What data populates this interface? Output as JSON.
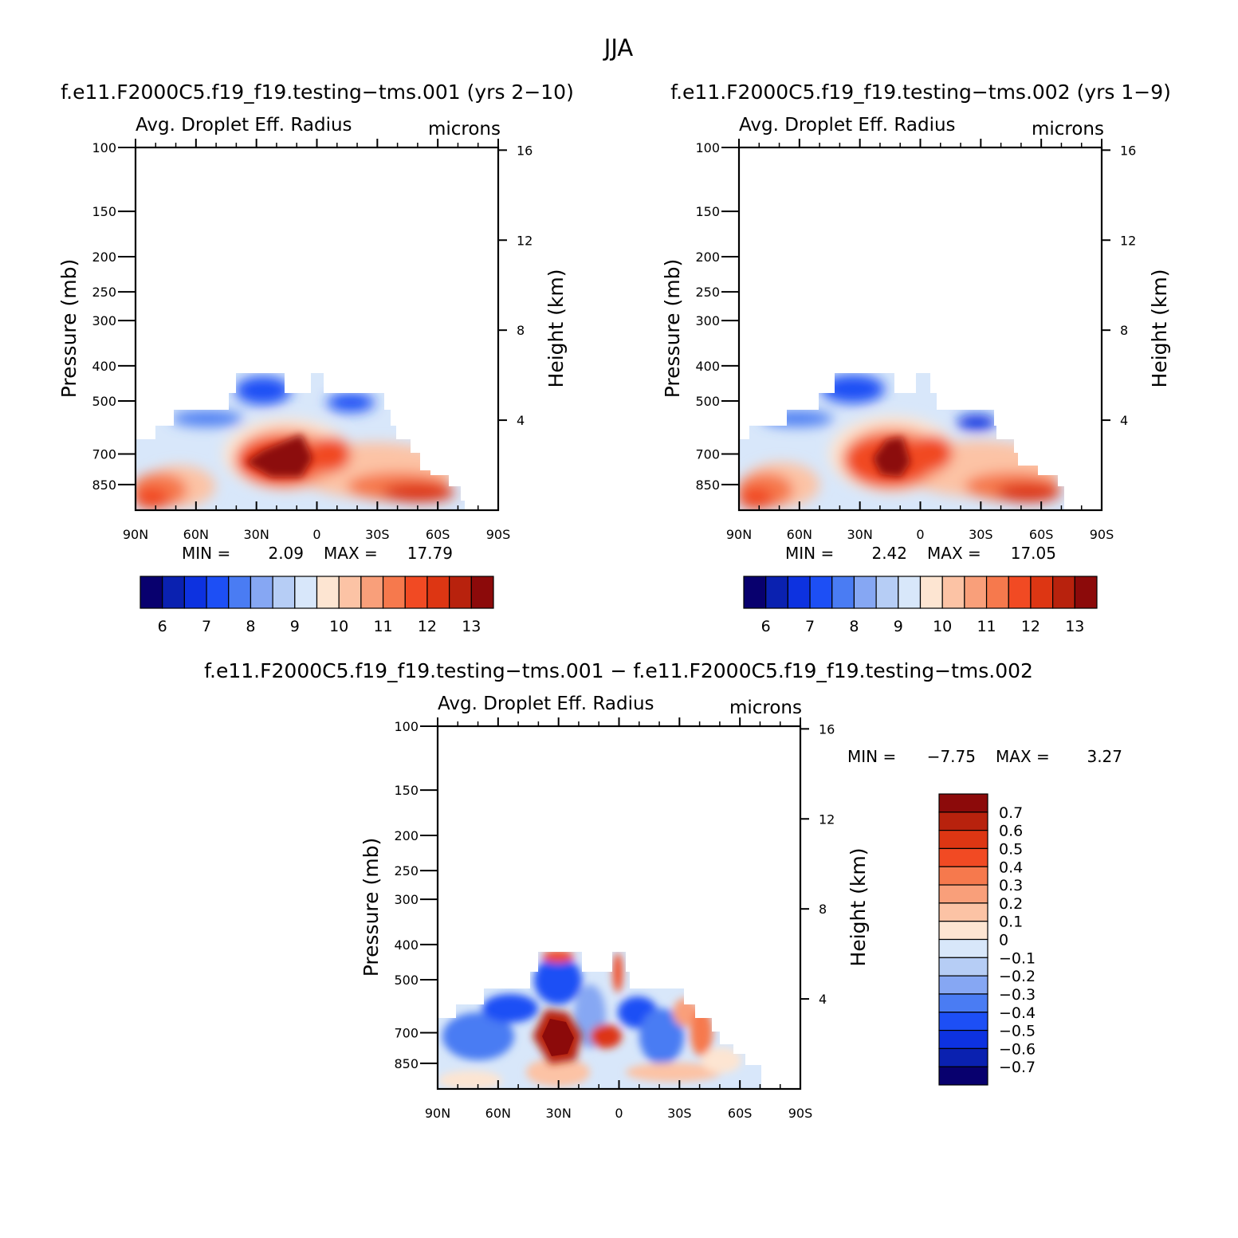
{
  "title": "JJA",
  "chart_data": [
    {
      "type": "heatmap",
      "case_title": "f.e11.F2000C5.f19_f19.testing−tms.001 (yrs 2−10)",
      "variable": "Avg. Droplet Eff. Radius",
      "units": "microns",
      "ylabel": "Pressure (mb)",
      "ylabel_right": "Height (km)",
      "x_ticks": [
        "90N",
        "60N",
        "30N",
        "0",
        "30S",
        "60S",
        "90S"
      ],
      "y_ticks": [
        "100",
        "150",
        "200",
        "250",
        "300",
        "400",
        "500",
        "700",
        "850"
      ],
      "y2_ticks": [
        "16",
        "12",
        "8",
        "4"
      ],
      "xlim": [
        90,
        -90
      ],
      "ylim": [
        1000,
        100
      ],
      "y_scale": "log",
      "min_label": "MIN =",
      "min_value": "2.09",
      "max_label": "MAX =",
      "max_value": "17.79",
      "colorbar": {
        "orientation": "horizontal",
        "labels": [
          "6",
          "7",
          "8",
          "9",
          "10",
          "11",
          "12",
          "13"
        ],
        "colors": [
          "#08006e",
          "#0a21b0",
          "#0d32e0",
          "#1d4ff5",
          "#4a7cf3",
          "#86a7f3",
          "#b6cdf5",
          "#d8e7fa",
          "#fde5d2",
          "#fcc3a5",
          "#f99f7a",
          "#f6794d",
          "#f14a23",
          "#dd3613",
          "#b8220d",
          "#8c0a0a"
        ]
      },
      "bottom_rows": [
        9,
        1
      ]
    },
    {
      "type": "heatmap",
      "case_title": "f.e11.F2000C5.f19_f19.testing−tms.002 (yrs 1−9)",
      "variable": "Avg. Droplet Eff. Radius",
      "units": "microns",
      "ylabel": "Pressure (mb)",
      "ylabel_right": "Height (km)",
      "x_ticks": [
        "90N",
        "60N",
        "30N",
        "0",
        "30S",
        "60S",
        "90S"
      ],
      "y_ticks": [
        "100",
        "150",
        "200",
        "250",
        "300",
        "400",
        "500",
        "700",
        "850"
      ],
      "y2_ticks": [
        "16",
        "12",
        "8",
        "4"
      ],
      "xlim": [
        90,
        -90
      ],
      "ylim": [
        1000,
        100
      ],
      "y_scale": "log",
      "min_label": "MIN =",
      "min_value": "2.42",
      "max_label": "MAX =",
      "max_value": "17.05",
      "colorbar": {
        "orientation": "horizontal",
        "labels": [
          "6",
          "7",
          "8",
          "9",
          "10",
          "11",
          "12",
          "13"
        ],
        "colors": [
          "#08006e",
          "#0a21b0",
          "#0d32e0",
          "#1d4ff5",
          "#4a7cf3",
          "#86a7f3",
          "#b6cdf5",
          "#d8e7fa",
          "#fde5d2",
          "#fcc3a5",
          "#f99f7a",
          "#f6794d",
          "#f14a23",
          "#dd3613",
          "#b8220d",
          "#8c0a0a"
        ]
      },
      "bottom_rows": [
        9,
        1
      ]
    },
    {
      "type": "heatmap",
      "case_title": "f.e11.F2000C5.f19_f19.testing−tms.001 − f.e11.F2000C5.f19_f19.testing−tms.002",
      "variable": "Avg. Droplet Eff. Radius",
      "units": "microns",
      "ylabel": "Pressure (mb)",
      "ylabel_right": "Height (km)",
      "x_ticks": [
        "90N",
        "60N",
        "30N",
        "0",
        "30S",
        "60S",
        "90S"
      ],
      "y_ticks": [
        "100",
        "150",
        "200",
        "250",
        "300",
        "400",
        "500",
        "700",
        "850"
      ],
      "y2_ticks": [
        "16",
        "12",
        "8",
        "4"
      ],
      "xlim": [
        90,
        -90
      ],
      "ylim": [
        1000,
        100
      ],
      "y_scale": "log",
      "min_label": "MIN =",
      "min_value": "−7.75",
      "max_label": "MAX =",
      "max_value": "3.27",
      "colorbar": {
        "orientation": "vertical",
        "labels": [
          "0.7",
          "0.6",
          "0.5",
          "0.4",
          "0.3",
          "0.2",
          "0.1",
          "0",
          "−0.1",
          "−0.2",
          "−0.3",
          "−0.4",
          "−0.5",
          "−0.6",
          "−0.7"
        ],
        "colors": [
          "#8c0a0a",
          "#b8220d",
          "#dd3613",
          "#f14a23",
          "#f6794d",
          "#f99f7a",
          "#fcc3a5",
          "#fde5d2",
          "#d8e7fa",
          "#b6cdf5",
          "#86a7f3",
          "#4a7cf3",
          "#1d4ff5",
          "#0d32e0",
          "#0a21b0",
          "#08006e"
        ]
      }
    }
  ]
}
